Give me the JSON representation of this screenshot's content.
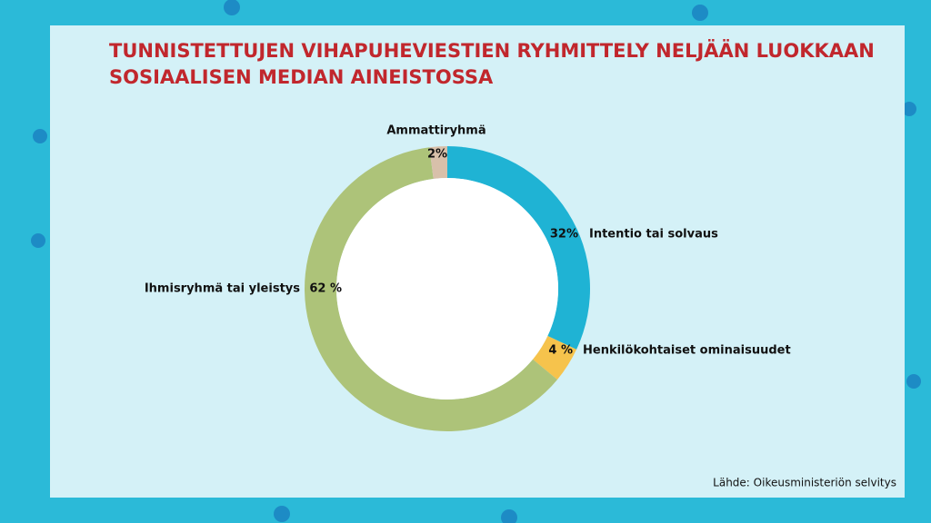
{
  "chart_data": {
    "type": "donut",
    "title": [
      "TUNNISTETTUJEN VIHAPUHEVIESTIEN RYHMITTELY NELJÄÄN LUOKKAAN",
      "SOSIAALISEN MEDIAN AINEISTOSSA"
    ],
    "categories": [
      "Intentio tai solvaus",
      "Henkilökohtaiset ominaisuudet",
      "Ihmisryhmä tai yleistys",
      "Ammattiryhmä"
    ],
    "values": [
      32,
      4,
      62,
      2
    ],
    "value_labels": [
      "32%",
      "4 %",
      "62 %",
      "2%"
    ],
    "colors": [
      "#1fb3d4",
      "#f6c34c",
      "#adc379",
      "#d8c0aa"
    ],
    "source": "Lähde: Oikeusministeriön selvitys"
  }
}
